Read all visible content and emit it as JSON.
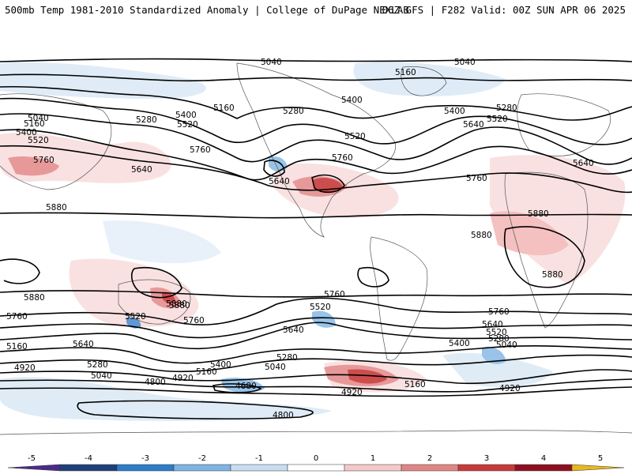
{
  "header": {
    "title_left": "500mb Temp 1981-2010 Standardized Anomaly | College of DuPage NEXLAB",
    "title_right": "06Z GFS | F282 Valid: 00Z SUN APR 06 2025"
  },
  "map": {
    "projection": "equirectangular",
    "contours": [
      {
        "value": "5040",
        "labels": [
          "5040",
          "5040",
          "5040",
          "5040",
          "5040",
          "5040"
        ]
      },
      {
        "value": "5160",
        "labels": [
          "5160",
          "5160",
          "5160",
          "5160",
          "5160",
          "5160"
        ]
      },
      {
        "value": "5280",
        "labels": [
          "5280",
          "5280",
          "5280",
          "5280",
          "5280",
          "5280"
        ]
      },
      {
        "value": "5400",
        "labels": [
          "5400",
          "5400",
          "5400",
          "5400",
          "5400",
          "5400"
        ]
      },
      {
        "value": "5520",
        "labels": [
          "5520",
          "5520",
          "5520",
          "5520",
          "5520",
          "5520",
          "5520"
        ]
      },
      {
        "value": "5640",
        "labels": [
          "5640",
          "5640",
          "5640",
          "5640",
          "5640",
          "5640",
          "5640"
        ]
      },
      {
        "value": "5760",
        "labels": [
          "5760",
          "5760",
          "5760",
          "5760",
          "5760",
          "5760",
          "5760",
          "5760"
        ]
      },
      {
        "value": "5880",
        "labels": [
          "5880",
          "5880",
          "5880",
          "5880",
          "5880",
          "5880",
          "5880"
        ]
      },
      {
        "value": "4920",
        "labels": [
          "4920",
          "4920",
          "4920",
          "4920"
        ]
      },
      {
        "value": "4800",
        "labels": [
          "4800",
          "4800"
        ]
      },
      {
        "value": "4680",
        "labels": [
          "4680"
        ]
      }
    ]
  },
  "colorbar": {
    "ticks": [
      "-5",
      "-4",
      "-3",
      "-2",
      "-1",
      "0",
      "1",
      "2",
      "3",
      "4",
      "5"
    ],
    "colors": [
      "#4b2a8a",
      "#1f3f7a",
      "#2d7cc8",
      "#7fb3e2",
      "#c9ddf1",
      "#ffffff",
      "#f5c9c9",
      "#e08585",
      "#c83a3a",
      "#8e1020",
      "#e8b820"
    ]
  }
}
